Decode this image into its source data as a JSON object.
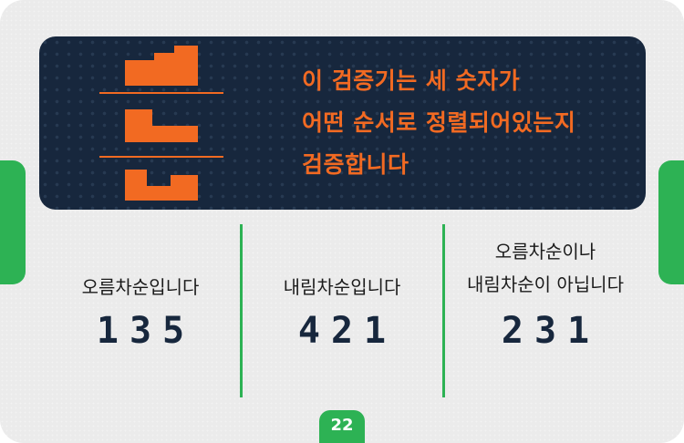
{
  "panel": {
    "lines": [
      "이 검증기는 세 숫자가",
      "어떤 순서로 정렬되어있는지",
      "검증합니다"
    ],
    "icon": "ascending-steps-logo-icon",
    "accent_color": "#f26a22",
    "background_color": "#17273d"
  },
  "cards": [
    {
      "label_lines": [
        "오름차순입니다"
      ],
      "value": "135"
    },
    {
      "label_lines": [
        "내림차순입니다"
      ],
      "value": "421"
    },
    {
      "label_lines": [
        "오름차순이나",
        "내림차순이 아닙니다"
      ],
      "value": "231"
    }
  ],
  "page_number": "22",
  "theme": {
    "green": "#2db254",
    "navy": "#17273d"
  }
}
